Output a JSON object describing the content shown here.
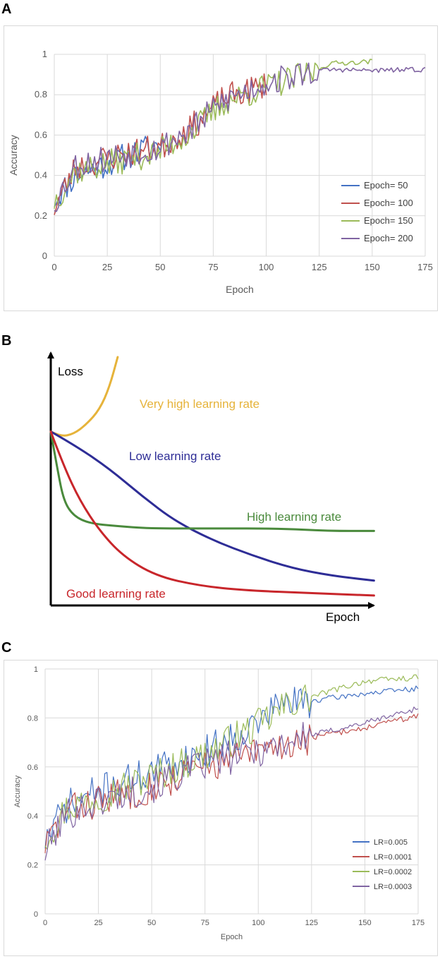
{
  "panels": {
    "a": "A",
    "b": "B",
    "c": "C"
  },
  "chart_data": [
    {
      "type": "line",
      "panel": "A",
      "xlabel": "Epoch",
      "ylabel": "Accuracy",
      "xlim": [
        0,
        175
      ],
      "ylim": [
        0,
        1
      ],
      "xticks": [
        0,
        25,
        50,
        75,
        100,
        125,
        150,
        175
      ],
      "yticks": [
        0,
        0.2,
        0.4,
        0.6,
        0.8,
        1
      ],
      "ytick_labels": [
        "0",
        "0.2",
        "0.4",
        "0.6",
        "0.8",
        "1"
      ],
      "legend_position": "bottom-right",
      "series": [
        {
          "name": "Epoch= 50",
          "color": "#4472c4",
          "x_end": 50,
          "seed": 11,
          "keypoints": [
            [
              0,
              0.28
            ],
            [
              10,
              0.4
            ],
            [
              30,
              0.48
            ],
            [
              50,
              0.56
            ]
          ]
        },
        {
          "name": "Epoch= 100",
          "color": "#c0504d",
          "x_end": 100,
          "seed": 23,
          "keypoints": [
            [
              0,
              0.24
            ],
            [
              10,
              0.44
            ],
            [
              30,
              0.5
            ],
            [
              50,
              0.54
            ],
            [
              65,
              0.64
            ],
            [
              80,
              0.78
            ],
            [
              100,
              0.85
            ]
          ]
        },
        {
          "name": "Epoch= 150",
          "color": "#9bbb59",
          "x_end": 150,
          "seed": 37,
          "keypoints": [
            [
              0,
              0.27
            ],
            [
              10,
              0.42
            ],
            [
              30,
              0.47
            ],
            [
              50,
              0.52
            ],
            [
              65,
              0.62
            ],
            [
              80,
              0.76
            ],
            [
              100,
              0.84
            ],
            [
              120,
              0.9
            ],
            [
              130,
              0.955
            ],
            [
              150,
              0.965
            ]
          ]
        },
        {
          "name": "Epoch= 200",
          "color": "#8064a2",
          "x_end": 175,
          "seed": 53,
          "keypoints": [
            [
              0,
              0.26
            ],
            [
              10,
              0.45
            ],
            [
              30,
              0.5
            ],
            [
              50,
              0.54
            ],
            [
              65,
              0.63
            ],
            [
              80,
              0.77
            ],
            [
              100,
              0.86
            ],
            [
              120,
              0.91
            ],
            [
              130,
              0.925
            ],
            [
              150,
              0.92
            ],
            [
              175,
              0.925
            ]
          ]
        }
      ]
    },
    {
      "type": "line",
      "panel": "B",
      "xlabel": "Epoch",
      "ylabel": "Loss",
      "x_units": "relative 0-1",
      "y_units": "relative 0-1",
      "series": [
        {
          "name": "Very high learning rate",
          "color": "#e6b33a",
          "points": [
            [
              0,
              0.7
            ],
            [
              0.03,
              0.68
            ],
            [
              0.07,
              0.69
            ],
            [
              0.11,
              0.73
            ],
            [
              0.15,
              0.79
            ],
            [
              0.18,
              0.88
            ],
            [
              0.205,
              1.0
            ]
          ]
        },
        {
          "name": "Low learning rate",
          "color": "#2e2d96",
          "points": [
            [
              0,
              0.7
            ],
            [
              0.08,
              0.64
            ],
            [
              0.18,
              0.55
            ],
            [
              0.28,
              0.44
            ],
            [
              0.38,
              0.34
            ],
            [
              0.5,
              0.26
            ],
            [
              0.62,
              0.2
            ],
            [
              0.74,
              0.15
            ],
            [
              0.86,
              0.12
            ],
            [
              0.99,
              0.1
            ]
          ]
        },
        {
          "name": "High learning rate",
          "color": "#4a8a3c",
          "points": [
            [
              0,
              0.7
            ],
            [
              0.02,
              0.55
            ],
            [
              0.04,
              0.42
            ],
            [
              0.07,
              0.36
            ],
            [
              0.12,
              0.33
            ],
            [
              0.2,
              0.32
            ],
            [
              0.3,
              0.31
            ],
            [
              0.5,
              0.31
            ],
            [
              0.7,
              0.31
            ],
            [
              0.85,
              0.3
            ],
            [
              0.99,
              0.3
            ]
          ]
        },
        {
          "name": "Good learning rate",
          "color": "#c8262b",
          "points": [
            [
              0,
              0.7
            ],
            [
              0.04,
              0.56
            ],
            [
              0.09,
              0.42
            ],
            [
              0.15,
              0.3
            ],
            [
              0.22,
              0.2
            ],
            [
              0.32,
              0.12
            ],
            [
              0.45,
              0.08
            ],
            [
              0.6,
              0.06
            ],
            [
              0.8,
              0.05
            ],
            [
              0.99,
              0.04
            ]
          ]
        }
      ]
    },
    {
      "type": "line",
      "panel": "C",
      "xlabel": "Epoch",
      "ylabel": "Accuracy",
      "xlim": [
        0,
        175
      ],
      "ylim": [
        0,
        1
      ],
      "xticks": [
        0,
        25,
        50,
        75,
        100,
        125,
        150,
        175
      ],
      "yticks": [
        0,
        0.2,
        0.4,
        0.6,
        0.8,
        1
      ],
      "ytick_labels": [
        "0",
        "0.2",
        "0.4",
        "0.6",
        "0.8",
        "1"
      ],
      "legend_position": "bottom-right",
      "series": [
        {
          "name": "LR=0.005",
          "color": "#4472c4",
          "x_end": 175,
          "seed": 71,
          "keypoints": [
            [
              0,
              0.3
            ],
            [
              10,
              0.44
            ],
            [
              25,
              0.5
            ],
            [
              50,
              0.58
            ],
            [
              75,
              0.66
            ],
            [
              100,
              0.78
            ],
            [
              110,
              0.86
            ],
            [
              125,
              0.87
            ],
            [
              150,
              0.9
            ],
            [
              175,
              0.92
            ]
          ]
        },
        {
          "name": "LR=0.0001",
          "color": "#c0504d",
          "x_end": 175,
          "seed": 83,
          "keypoints": [
            [
              0,
              0.28
            ],
            [
              10,
              0.42
            ],
            [
              25,
              0.46
            ],
            [
              50,
              0.52
            ],
            [
              75,
              0.6
            ],
            [
              100,
              0.66
            ],
            [
              125,
              0.72
            ],
            [
              150,
              0.76
            ],
            [
              175,
              0.81
            ]
          ]
        },
        {
          "name": "LR=0.0002",
          "color": "#9bbb59",
          "x_end": 175,
          "seed": 97,
          "keypoints": [
            [
              0,
              0.31
            ],
            [
              10,
              0.43
            ],
            [
              25,
              0.48
            ],
            [
              50,
              0.56
            ],
            [
              75,
              0.65
            ],
            [
              100,
              0.77
            ],
            [
              115,
              0.86
            ],
            [
              130,
              0.9
            ],
            [
              150,
              0.95
            ],
            [
              175,
              0.965
            ]
          ]
        },
        {
          "name": "LR=0.0003",
          "color": "#8064a2",
          "x_end": 175,
          "seed": 101,
          "keypoints": [
            [
              0,
              0.25
            ],
            [
              10,
              0.41
            ],
            [
              25,
              0.46
            ],
            [
              50,
              0.52
            ],
            [
              75,
              0.61
            ],
            [
              100,
              0.67
            ],
            [
              125,
              0.73
            ],
            [
              150,
              0.78
            ],
            [
              175,
              0.84
            ]
          ]
        }
      ]
    }
  ]
}
